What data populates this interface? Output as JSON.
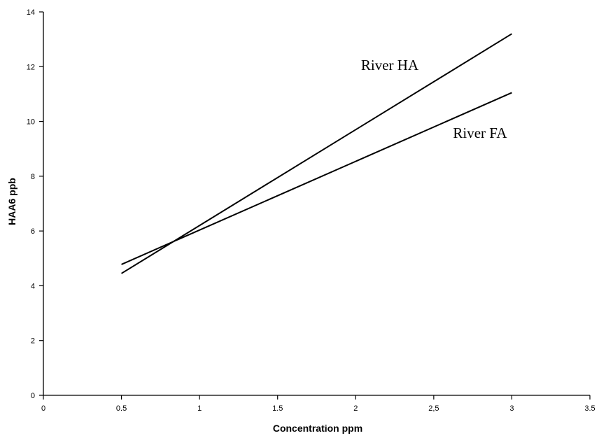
{
  "chart_data": {
    "type": "line",
    "title": "",
    "xlabel": "Concentration ppm",
    "ylabel": "HAA6 ppb",
    "xlim": [
      0,
      3.5
    ],
    "ylim": [
      0,
      14
    ],
    "x_ticks": [
      0,
      0.5,
      1,
      1.5,
      2,
      2.5,
      3,
      3.5
    ],
    "x_tick_labels": [
      "0",
      "0.5",
      "1",
      "1.5",
      "2",
      "2,5",
      "3",
      "3.5"
    ],
    "y_ticks": [
      0,
      2,
      4,
      6,
      8,
      10,
      12,
      14
    ],
    "y_tick_labels": [
      "0",
      "2",
      "4",
      "6",
      "8",
      "10",
      "12",
      "14"
    ],
    "grid": false,
    "legend": "none",
    "series": [
      {
        "name": "River HA",
        "x": [
          0.5,
          3
        ],
        "y": [
          4.45,
          13.2
        ],
        "color": "#000000"
      },
      {
        "name": "River FA",
        "x": [
          0.5,
          3
        ],
        "y": [
          4.78,
          11.05
        ],
        "color": "#000000"
      }
    ]
  }
}
